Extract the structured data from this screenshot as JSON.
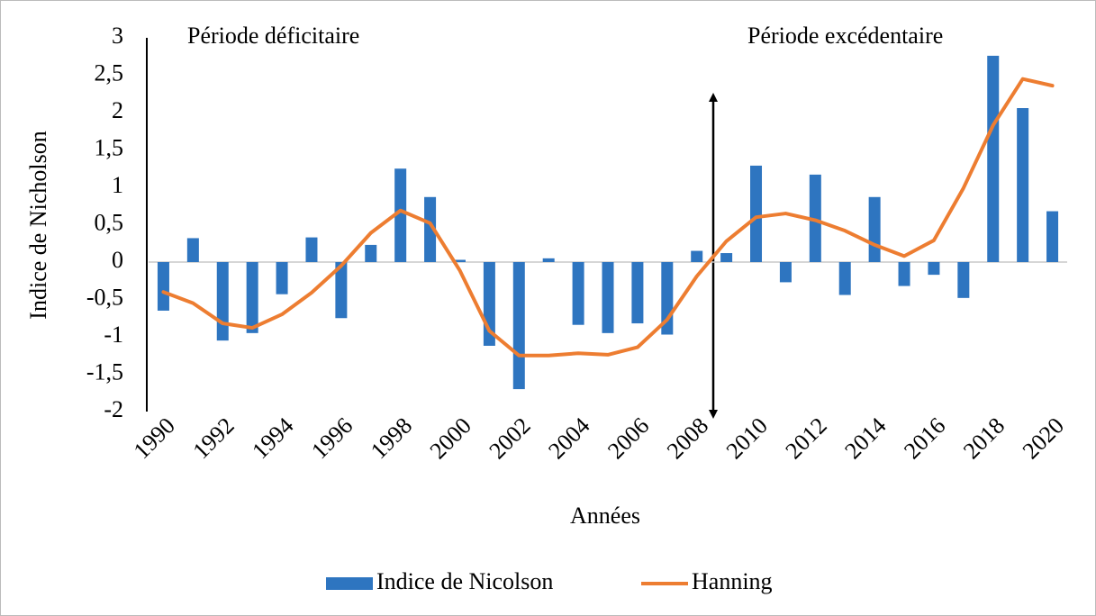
{
  "chart_data": {
    "type": "bar",
    "x_label": "Années",
    "y_label": "Indice de Nicholson",
    "annotations": [
      "Période déficitaire",
      "Période excédentaire"
    ],
    "categories": [
      1990,
      null,
      1992,
      null,
      1994,
      null,
      1996,
      null,
      1998,
      null,
      2000,
      null,
      2002,
      null,
      2004,
      null,
      2006,
      null,
      2008,
      null,
      2010,
      null,
      2012,
      null,
      2014,
      null,
      2016,
      null,
      2018,
      null,
      2020
    ],
    "series": [
      {
        "name": "Indice de Nicolson",
        "type": "bar",
        "color": "#2e75c0",
        "values": [
          -0.65,
          0.32,
          -1.05,
          -0.95,
          -0.43,
          0.33,
          -0.75,
          0.23,
          1.25,
          0.87,
          0.03,
          -1.12,
          -1.7,
          0.05,
          -0.84,
          -0.95,
          -0.82,
          -0.97,
          0.15,
          0.12,
          1.29,
          -0.27,
          1.17,
          -0.44,
          0.87,
          -0.32,
          -0.17,
          -0.48,
          2.76,
          2.06,
          0.68
        ]
      },
      {
        "name": "Hanning",
        "type": "line",
        "color": "#ed7d31",
        "values": [
          -0.4,
          -0.55,
          -0.82,
          -0.88,
          -0.7,
          -0.41,
          -0.05,
          0.39,
          0.69,
          0.52,
          -0.11,
          -0.92,
          -1.25,
          -1.25,
          -1.22,
          -1.24,
          -1.14,
          -0.77,
          -0.19,
          0.28,
          0.6,
          0.65,
          0.56,
          0.42,
          0.23,
          0.08,
          0.29,
          0.99,
          1.83,
          2.45,
          2.36
        ]
      }
    ],
    "ylim": [
      -2,
      3
    ],
    "yticks": [
      -2,
      {
        "value": -1.5,
        "label": "-1,5"
      },
      -1,
      {
        "value": -0.5,
        "label": "-0,5"
      },
      0,
      {
        "value": 0.5,
        "label": "0,5"
      },
      1,
      {
        "value": 1.5,
        "label": "1,5"
      },
      2,
      {
        "value": 2.5,
        "label": "2,5"
      },
      3
    ],
    "grid": false,
    "legend": "bottom"
  }
}
